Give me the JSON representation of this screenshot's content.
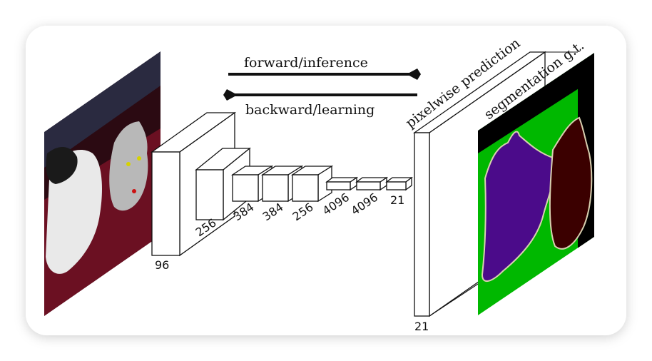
{
  "labels": {
    "forward": "forward/inference",
    "backward": "backward/learning",
    "pixelwise": "pixelwise prediction",
    "segmentation": "segmentation g.t."
  },
  "layers": [
    {
      "label": "96"
    },
    {
      "label": "256"
    },
    {
      "label": "384"
    },
    {
      "label": "384"
    },
    {
      "label": "256"
    },
    {
      "label": "4096"
    },
    {
      "label": "4096"
    },
    {
      "label": "21"
    }
  ],
  "prediction": {
    "label": "21"
  },
  "colors": {
    "card_background": "#ffffff",
    "card_shadow": "#d9d9d9",
    "segmentation_background": "#00b800",
    "segmentation_dog": "#4b0b8a",
    "segmentation_cat": "#3b0000",
    "segmentation_outline": "#d8d0b0",
    "segmentation_black": "#000000",
    "input_photo_dark": "#3b0b16",
    "input_photo_red": "#6b1022",
    "stroke": "#111111"
  },
  "icons": [
    "right-arrow-icon",
    "left-arrow-icon"
  ]
}
